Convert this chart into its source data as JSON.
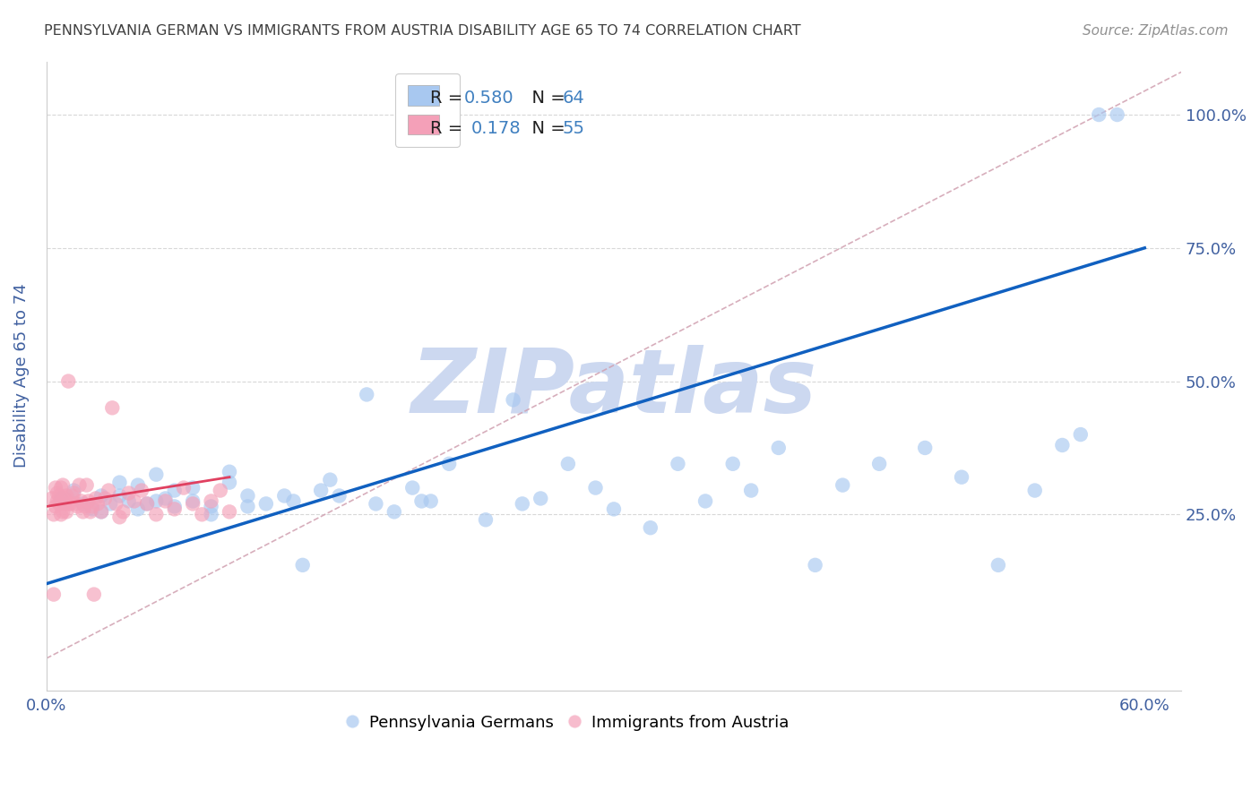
{
  "title": "PENNSYLVANIA GERMAN VS IMMIGRANTS FROM AUSTRIA DISABILITY AGE 65 TO 74 CORRELATION CHART",
  "source": "Source: ZipAtlas.com",
  "ylabel": "Disability Age 65 to 74",
  "xlim": [
    0.0,
    0.62
  ],
  "ylim": [
    -0.08,
    1.1
  ],
  "blue_R": "0.580",
  "blue_N": "64",
  "pink_R": "0.178",
  "pink_N": "55",
  "blue_scatter_color": "#a8c8f0",
  "pink_scatter_color": "#f4a0b8",
  "blue_line_color": "#1060c0",
  "pink_line_color": "#e04060",
  "ref_line_color": "#d0a0b0",
  "watermark_text": "ZIPatlas",
  "watermark_color": "#ccd8f0",
  "background_color": "#ffffff",
  "grid_color": "#d8d8d8",
  "title_color": "#404040",
  "axis_label_color": "#4060a0",
  "legend_value_color": "#4080c0",
  "legend_text_color": "#202020",
  "yticks_right": [
    0.25,
    0.5,
    0.75,
    1.0
  ],
  "yticklabels_right": [
    "25.0%",
    "50.0%",
    "75.0%",
    "100.0%"
  ],
  "xtick_vals": [
    0.0,
    0.1,
    0.2,
    0.3,
    0.4,
    0.5,
    0.6
  ],
  "xticklabels": [
    "0.0%",
    "",
    "",
    "",
    "",
    "",
    "60.0%"
  ],
  "blue_line_x0": 0.0,
  "blue_line_y0": 0.12,
  "blue_line_x1": 0.6,
  "blue_line_y1": 0.75,
  "pink_line_x0": 0.0,
  "pink_line_x1": 0.1,
  "pink_line_y0": 0.265,
  "pink_line_y1": 0.32,
  "ref_line_x0": 0.0,
  "ref_line_y0": -0.02,
  "ref_line_x1": 0.62,
  "ref_line_y1": 1.08,
  "blue_scatter_x": [
    0.008,
    0.015,
    0.02,
    0.025,
    0.03,
    0.03,
    0.035,
    0.04,
    0.04,
    0.045,
    0.05,
    0.05,
    0.055,
    0.06,
    0.06,
    0.065,
    0.07,
    0.07,
    0.08,
    0.08,
    0.09,
    0.09,
    0.1,
    0.1,
    0.11,
    0.11,
    0.12,
    0.13,
    0.135,
    0.14,
    0.15,
    0.155,
    0.16,
    0.175,
    0.18,
    0.19,
    0.2,
    0.205,
    0.21,
    0.22,
    0.24,
    0.255,
    0.26,
    0.27,
    0.285,
    0.3,
    0.31,
    0.33,
    0.345,
    0.36,
    0.375,
    0.385,
    0.4,
    0.42,
    0.435,
    0.455,
    0.48,
    0.5,
    0.52,
    0.54,
    0.555,
    0.565,
    0.575,
    0.585
  ],
  "blue_scatter_y": [
    0.28,
    0.295,
    0.27,
    0.26,
    0.285,
    0.255,
    0.27,
    0.285,
    0.31,
    0.275,
    0.26,
    0.305,
    0.27,
    0.275,
    0.325,
    0.28,
    0.295,
    0.265,
    0.3,
    0.275,
    0.265,
    0.25,
    0.31,
    0.33,
    0.285,
    0.265,
    0.27,
    0.285,
    0.275,
    0.155,
    0.295,
    0.315,
    0.285,
    0.475,
    0.27,
    0.255,
    0.3,
    0.275,
    0.275,
    0.345,
    0.24,
    0.465,
    0.27,
    0.28,
    0.345,
    0.3,
    0.26,
    0.225,
    0.345,
    0.275,
    0.345,
    0.295,
    0.375,
    0.155,
    0.305,
    0.345,
    0.375,
    0.32,
    0.155,
    0.295,
    0.38,
    0.4,
    1.0,
    1.0
  ],
  "pink_scatter_x": [
    0.003,
    0.004,
    0.005,
    0.005,
    0.006,
    0.006,
    0.007,
    0.007,
    0.008,
    0.008,
    0.009,
    0.009,
    0.01,
    0.01,
    0.011,
    0.011,
    0.012,
    0.012,
    0.013,
    0.014,
    0.015,
    0.016,
    0.017,
    0.018,
    0.019,
    0.02,
    0.021,
    0.022,
    0.023,
    0.024,
    0.025,
    0.026,
    0.027,
    0.028,
    0.03,
    0.032,
    0.034,
    0.036,
    0.038,
    0.04,
    0.042,
    0.045,
    0.048,
    0.052,
    0.055,
    0.06,
    0.065,
    0.07,
    0.075,
    0.08,
    0.085,
    0.09,
    0.095,
    0.1,
    0.004
  ],
  "pink_scatter_y": [
    0.28,
    0.25,
    0.3,
    0.265,
    0.29,
    0.275,
    0.27,
    0.285,
    0.3,
    0.25,
    0.255,
    0.305,
    0.28,
    0.27,
    0.255,
    0.285,
    0.5,
    0.27,
    0.27,
    0.285,
    0.29,
    0.27,
    0.265,
    0.305,
    0.275,
    0.255,
    0.265,
    0.305,
    0.275,
    0.255,
    0.265,
    0.1,
    0.28,
    0.27,
    0.255,
    0.28,
    0.295,
    0.45,
    0.27,
    0.245,
    0.255,
    0.29,
    0.275,
    0.295,
    0.27,
    0.25,
    0.275,
    0.26,
    0.3,
    0.27,
    0.25,
    0.275,
    0.295,
    0.255,
    0.1
  ]
}
